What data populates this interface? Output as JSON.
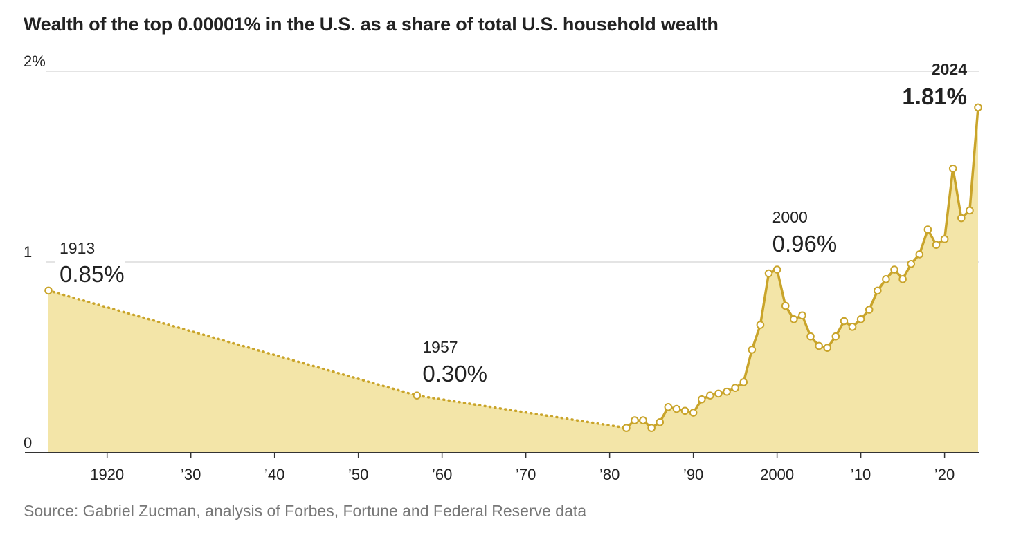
{
  "title": "Wealth of the top 0.00001% in the U.S. as a share of total U.S. household wealth",
  "source": "Source: Gabriel Zucman, analysis of Forbes, Fortune and Federal Reserve data",
  "colors": {
    "line": "#c9a42a",
    "area": "#f3e5a8",
    "grid": "#dcdcdc",
    "axis": "#333333",
    "text": "#222222",
    "muted": "#777777"
  },
  "chart_data": {
    "type": "area",
    "title": "Wealth of the top 0.00001% in the U.S. as a share of total U.S. household wealth",
    "xlabel": "",
    "ylabel": "",
    "ylim": [
      0,
      2
    ],
    "xlim": [
      1912,
      2025
    ],
    "y_ticks": [
      {
        "value": 0,
        "label": "0"
      },
      {
        "value": 1,
        "label": "1"
      },
      {
        "value": 2,
        "label": "2%"
      }
    ],
    "x_ticks": [
      {
        "value": 1920,
        "label": "1920"
      },
      {
        "value": 1930,
        "label": "’30"
      },
      {
        "value": 1940,
        "label": "’40"
      },
      {
        "value": 1950,
        "label": "’50"
      },
      {
        "value": 1960,
        "label": "’60"
      },
      {
        "value": 1970,
        "label": "’70"
      },
      {
        "value": 1980,
        "label": "’80"
      },
      {
        "value": 1990,
        "label": "’90"
      },
      {
        "value": 2000,
        "label": "2000"
      },
      {
        "value": 2010,
        "label": "’10"
      },
      {
        "value": 2020,
        "label": "’20"
      }
    ],
    "grid": true,
    "dotted_segment": {
      "x": [
        1913,
        1957,
        1982
      ],
      "y": [
        0.85,
        0.3,
        0.13
      ]
    },
    "series": [
      {
        "x": [
          1913,
          1957,
          1982,
          1983,
          1984,
          1985,
          1986,
          1987,
          1988,
          1989,
          1990,
          1991,
          1992,
          1993,
          1994,
          1995,
          1996,
          1997,
          1998,
          1999,
          2000,
          2001,
          2002,
          2003,
          2004,
          2005,
          2006,
          2007,
          2008,
          2009,
          2010,
          2011,
          2012,
          2013,
          2014,
          2015,
          2016,
          2017,
          2018,
          2019,
          2020,
          2021,
          2022,
          2023,
          2024
        ],
        "values": [
          0.85,
          0.3,
          0.13,
          0.17,
          0.17,
          0.13,
          0.16,
          0.24,
          0.23,
          0.22,
          0.21,
          0.28,
          0.3,
          0.31,
          0.32,
          0.34,
          0.37,
          0.54,
          0.67,
          0.94,
          0.96,
          0.77,
          0.7,
          0.72,
          0.61,
          0.56,
          0.55,
          0.61,
          0.69,
          0.66,
          0.7,
          0.75,
          0.85,
          0.91,
          0.96,
          0.91,
          0.99,
          1.04,
          1.17,
          1.09,
          1.12,
          1.49,
          1.23,
          1.27,
          1.81
        ]
      }
    ],
    "annotations": [
      {
        "x": 1913,
        "y": 0.85,
        "year": "1913",
        "value": "0.85%",
        "emphasis": false
      },
      {
        "x": 1957,
        "y": 0.3,
        "year": "1957",
        "value": "0.30%",
        "emphasis": false
      },
      {
        "x": 2000,
        "y": 0.96,
        "year": "2000",
        "value": "0.96%",
        "emphasis": false
      },
      {
        "x": 2024,
        "y": 1.81,
        "year": "2024",
        "value": "1.81%",
        "emphasis": true
      }
    ]
  }
}
